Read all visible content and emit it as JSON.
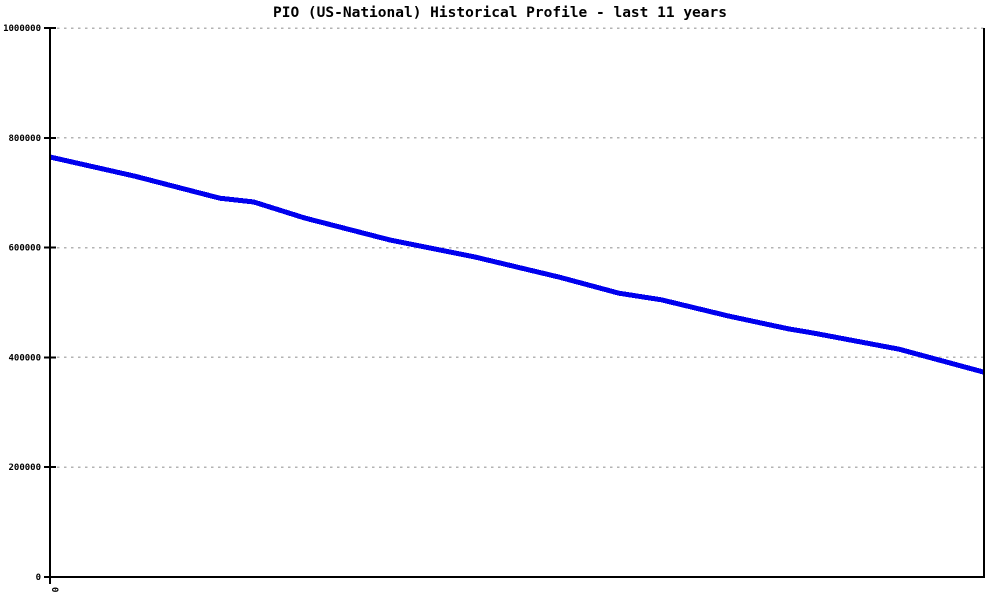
{
  "page": {
    "background_color": "#ffffff"
  },
  "chart_data": {
    "type": "line",
    "title": "PIO (US-National) Historical Profile - last 11 years",
    "xlabel": "",
    "ylabel": "",
    "x": [
      0,
      1,
      2,
      2.4,
      3,
      4,
      5,
      6,
      6.7,
      7.2,
      8,
      8.7,
      9,
      10,
      11
    ],
    "values": [
      765000,
      730000,
      690000,
      683000,
      654000,
      614000,
      583000,
      546000,
      517000,
      505000,
      475000,
      452000,
      444000,
      415000,
      373000
    ],
    "xlim": [
      0,
      11
    ],
    "ylim": [
      0,
      1000000
    ],
    "yticks": [
      0,
      200000,
      400000,
      600000,
      800000,
      1000000
    ],
    "ytick_labels": [
      "0",
      "200000",
      "400000",
      "600000",
      "800000",
      "1000000"
    ],
    "xticks": [
      0
    ],
    "xtick_labels": [
      "0"
    ],
    "grid": "dashed-horizontal",
    "legend_position": "none",
    "line_color": "#0000ee",
    "line_width": 5,
    "grid_color": "#b3b3b3",
    "axis_color": "#000000",
    "text_color": "#000000"
  }
}
